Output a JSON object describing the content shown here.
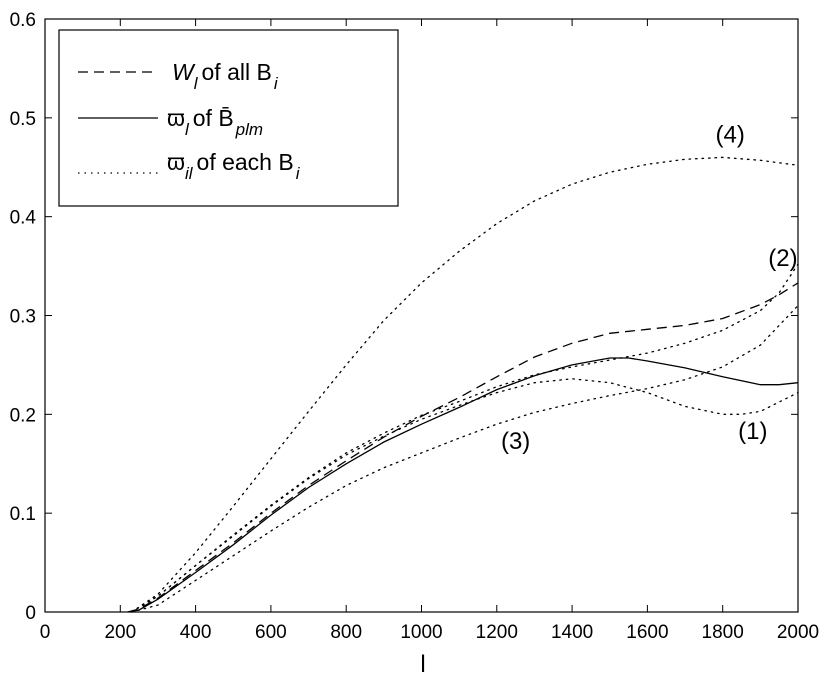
{
  "chart_data": {
    "type": "line",
    "xlabel": "l",
    "ylabel": "",
    "xlim": [
      0,
      2000
    ],
    "ylim": [
      0,
      0.6
    ],
    "x_ticks": [
      0,
      200,
      400,
      600,
      800,
      1000,
      1200,
      1400,
      1600,
      1800,
      2000
    ],
    "y_ticks": [
      0,
      0.1,
      0.2,
      0.3,
      0.4,
      0.5,
      0.6
    ],
    "x_tick_labels": [
      "0",
      "200",
      "400",
      "600",
      "800",
      "1000",
      "1200",
      "1400",
      "1600",
      "1800",
      "2000"
    ],
    "y_tick_labels": [
      "0",
      "0.1",
      "0.2",
      "0.3",
      "0.4",
      "0.5",
      "0.6"
    ],
    "grid": false,
    "legend_position": "top-left",
    "legend": [
      {
        "style": "dashed",
        "symbol": "W",
        "sub": "l",
        "text": "of all B",
        "text_sub": "i"
      },
      {
        "style": "solid",
        "symbol": "ϖ",
        "sub": "l",
        "text": "of  B̄",
        "text_sub": "plm"
      },
      {
        "style": "dotted",
        "symbol": "ϖ",
        "sub": "il",
        "text": "of each B",
        "text_sub": "i"
      }
    ],
    "annotations": [
      {
        "text": "(4)",
        "x": 1820,
        "y": 0.475
      },
      {
        "text": "(2)",
        "x": 1960,
        "y": 0.35
      },
      {
        "text": "(1)",
        "x": 1880,
        "y": 0.175
      },
      {
        "text": "(3)",
        "x": 1250,
        "y": 0.165
      }
    ],
    "series": [
      {
        "line_style": "dashed",
        "x": [
          220,
          250,
          300,
          400,
          500,
          600,
          700,
          800,
          900,
          1000,
          1100,
          1200,
          1300,
          1400,
          1500,
          1600,
          1700,
          1800,
          1900,
          1950,
          2000
        ],
        "y": [
          0,
          0.003,
          0.014,
          0.042,
          0.07,
          0.1,
          0.128,
          0.153,
          0.177,
          0.198,
          0.217,
          0.238,
          0.258,
          0.272,
          0.282,
          0.286,
          0.29,
          0.297,
          0.311,
          0.321,
          0.333
        ]
      },
      {
        "line_style": "solid",
        "x": [
          220,
          250,
          300,
          400,
          500,
          600,
          700,
          800,
          900,
          1000,
          1100,
          1200,
          1300,
          1400,
          1500,
          1550,
          1600,
          1700,
          1800,
          1900,
          1950,
          2000
        ],
        "y": [
          0,
          0.002,
          0.013,
          0.04,
          0.068,
          0.098,
          0.126,
          0.15,
          0.172,
          0.19,
          0.207,
          0.225,
          0.239,
          0.25,
          0.257,
          0.257,
          0.254,
          0.247,
          0.238,
          0.23,
          0.23,
          0.232
        ]
      },
      {
        "line_style": "dotted",
        "label": "(4)",
        "x": [
          230,
          300,
          400,
          500,
          600,
          700,
          800,
          900,
          1000,
          1100,
          1200,
          1300,
          1400,
          1500,
          1600,
          1700,
          1800,
          1900,
          2000
        ],
        "y": [
          0,
          0.018,
          0.06,
          0.107,
          0.155,
          0.203,
          0.25,
          0.295,
          0.333,
          0.365,
          0.393,
          0.416,
          0.433,
          0.445,
          0.453,
          0.458,
          0.46,
          0.457,
          0.452
        ]
      },
      {
        "line_style": "dotted",
        "label": "(2)",
        "x": [
          230,
          300,
          400,
          500,
          600,
          700,
          800,
          900,
          1000,
          1100,
          1200,
          1300,
          1400,
          1500,
          1600,
          1700,
          1800,
          1900,
          1950,
          2000
        ],
        "y": [
          0,
          0.016,
          0.047,
          0.078,
          0.108,
          0.136,
          0.161,
          0.181,
          0.199,
          0.213,
          0.228,
          0.24,
          0.248,
          0.255,
          0.262,
          0.272,
          0.285,
          0.305,
          0.323,
          0.352
        ]
      },
      {
        "line_style": "dotted",
        "label": "(1)",
        "x": [
          230,
          300,
          400,
          500,
          600,
          700,
          800,
          900,
          1000,
          1100,
          1200,
          1300,
          1400,
          1500,
          1600,
          1700,
          1800,
          1850,
          1900,
          2000
        ],
        "y": [
          0,
          0.016,
          0.047,
          0.077,
          0.107,
          0.135,
          0.159,
          0.178,
          0.195,
          0.209,
          0.222,
          0.232,
          0.236,
          0.232,
          0.222,
          0.208,
          0.2,
          0.2,
          0.203,
          0.222
        ]
      },
      {
        "line_style": "dotted",
        "label": "(3)",
        "x": [
          230,
          300,
          400,
          500,
          600,
          700,
          800,
          900,
          1000,
          1100,
          1200,
          1300,
          1400,
          1500,
          1600,
          1700,
          1800,
          1900,
          2000
        ],
        "y": [
          0,
          0.007,
          0.032,
          0.057,
          0.082,
          0.106,
          0.128,
          0.146,
          0.161,
          0.176,
          0.19,
          0.202,
          0.211,
          0.219,
          0.226,
          0.235,
          0.248,
          0.27,
          0.31
        ]
      }
    ]
  }
}
